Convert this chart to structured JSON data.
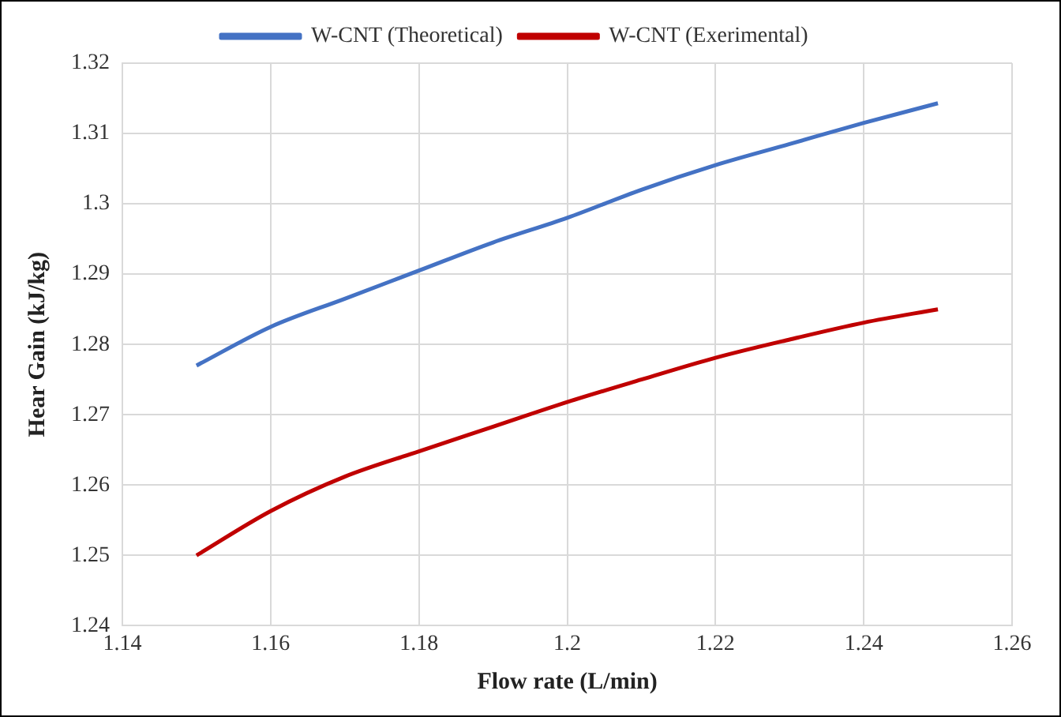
{
  "chart_data": {
    "type": "line",
    "xlabel": "Flow rate (L/min)",
    "ylabel": "Hear Gain (kJ/kg)",
    "x": [
      1.15,
      1.16,
      1.17,
      1.18,
      1.19,
      1.2,
      1.21,
      1.22,
      1.23,
      1.24,
      1.25
    ],
    "series": [
      {
        "name": "W-CNT (Theoretical)",
        "color": "#4472c4",
        "values": [
          1.277,
          1.2825,
          1.2865,
          1.2905,
          1.2945,
          1.298,
          1.302,
          1.3055,
          1.3085,
          1.3115,
          1.3143
        ]
      },
      {
        "name": "W-CNT (Exerimental)",
        "color": "#c00000",
        "values": [
          1.25,
          1.2563,
          1.2612,
          1.2648,
          1.2683,
          1.2718,
          1.275,
          1.2781,
          1.2807,
          1.2831,
          1.285
        ]
      }
    ],
    "xlim": [
      1.14,
      1.26
    ],
    "xticks": [
      1.14,
      1.16,
      1.18,
      1.2,
      1.22,
      1.24,
      1.26
    ],
    "ylim": [
      1.24,
      1.32
    ],
    "yticks": [
      1.24,
      1.25,
      1.26,
      1.27,
      1.28,
      1.29,
      1.3,
      1.31,
      1.32
    ],
    "grid": true,
    "legend": "top",
    "marker": "none",
    "line_style": "solid"
  }
}
